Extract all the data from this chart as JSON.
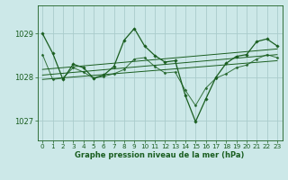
{
  "bg_color": "#cce8e8",
  "grid_color": "#aacccc",
  "line_color": "#1a5e20",
  "xlabel": "Graphe pression niveau de la mer (hPa)",
  "ylim": [
    1026.55,
    1029.65
  ],
  "xlim": [
    -0.5,
    23.5
  ],
  "yticks": [
    1027,
    1028,
    1029
  ],
  "xticks": [
    0,
    1,
    2,
    3,
    4,
    5,
    6,
    7,
    8,
    9,
    10,
    11,
    12,
    13,
    14,
    15,
    16,
    17,
    18,
    19,
    20,
    21,
    22,
    23
  ],
  "series1_x": [
    0,
    1,
    2,
    3,
    4,
    5,
    6,
    7,
    8,
    9,
    10,
    11,
    12,
    13,
    14,
    15,
    16,
    17,
    18,
    19,
    20,
    21,
    22,
    23
  ],
  "series1_y": [
    1029.0,
    1028.55,
    1027.95,
    1028.3,
    1028.22,
    1027.98,
    1028.05,
    1028.25,
    1028.85,
    1029.12,
    1028.72,
    1028.5,
    1028.35,
    1028.38,
    1027.58,
    1026.98,
    1027.5,
    1028.0,
    1028.32,
    1028.48,
    1028.52,
    1028.82,
    1028.88,
    1028.72
  ],
  "series2_x": [
    0,
    1,
    2,
    3,
    4,
    5,
    6,
    7,
    8,
    9,
    10,
    11,
    12,
    13,
    14,
    15,
    16,
    17,
    18,
    19,
    20,
    21,
    22,
    23
  ],
  "series2_y": [
    1028.52,
    1027.95,
    1027.98,
    1028.22,
    1028.12,
    1027.98,
    1028.02,
    1028.08,
    1028.18,
    1028.42,
    1028.45,
    1028.25,
    1028.1,
    1028.12,
    1027.7,
    1027.35,
    1027.75,
    1027.98,
    1028.08,
    1028.22,
    1028.28,
    1028.42,
    1028.52,
    1028.45
  ],
  "trend1_x": [
    0,
    23
  ],
  "trend1_y": [
    1027.95,
    1028.38
  ],
  "trend2_x": [
    0,
    23
  ],
  "trend2_y": [
    1028.05,
    1028.52
  ],
  "trend3_x": [
    0,
    23
  ],
  "trend3_y": [
    1028.18,
    1028.65
  ]
}
